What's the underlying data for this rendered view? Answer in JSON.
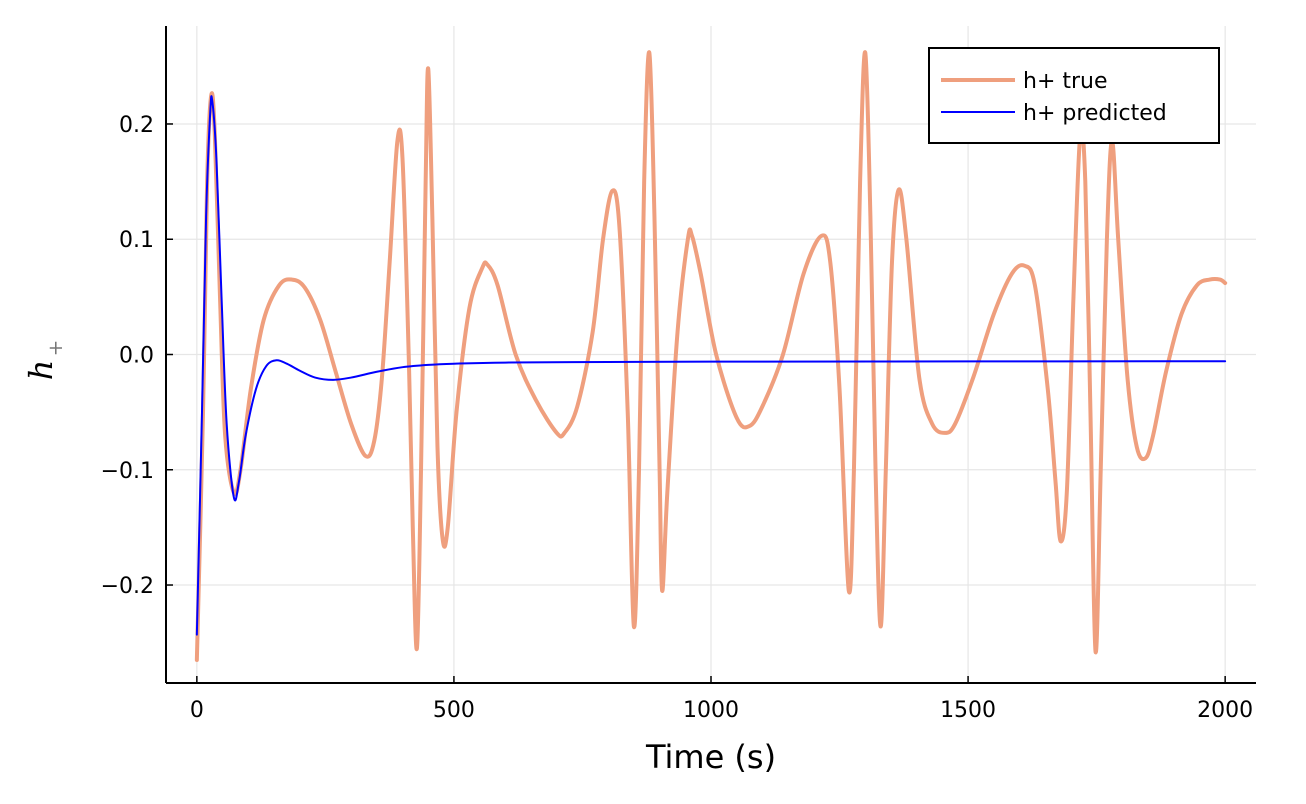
{
  "chart_data": {
    "type": "line",
    "xlabel": "Time (s)",
    "ylabel": {
      "main": "h",
      "sub": "+"
    },
    "xlim": [
      -60,
      2060
    ],
    "ylim": [
      -0.285,
      0.285
    ],
    "xticks": [
      0,
      500,
      1000,
      1500,
      2000
    ],
    "xtick_labels": [
      "0",
      "500",
      "1000",
      "1500",
      "2000"
    ],
    "yticks": [
      -0.2,
      -0.1,
      0.0,
      0.1,
      0.2
    ],
    "ytick_labels": [
      "−0.2",
      "−0.1",
      "0.0",
      "0.1",
      "0.2"
    ],
    "grid": true,
    "legend_position": "top-right",
    "series": [
      {
        "name": "h+ true",
        "color": "#ef9f7e",
        "points": [
          [
            0,
            -0.265
          ],
          [
            12,
            -0.05
          ],
          [
            20,
            0.15
          ],
          [
            28,
            0.225
          ],
          [
            35,
            0.19
          ],
          [
            45,
            0.05
          ],
          [
            55,
            -0.07
          ],
          [
            72,
            -0.12
          ],
          [
            85,
            -0.1
          ],
          [
            105,
            -0.03
          ],
          [
            130,
            0.03
          ],
          [
            160,
            0.06
          ],
          [
            185,
            0.065
          ],
          [
            210,
            0.058
          ],
          [
            240,
            0.03
          ],
          [
            270,
            -0.015
          ],
          [
            300,
            -0.06
          ],
          [
            328,
            -0.088
          ],
          [
            345,
            -0.075
          ],
          [
            360,
            -0.02
          ],
          [
            375,
            0.08
          ],
          [
            390,
            0.185
          ],
          [
            400,
            0.17
          ],
          [
            412,
            0.0
          ],
          [
            420,
            -0.15
          ],
          [
            428,
            -0.255
          ],
          [
            436,
            -0.1
          ],
          [
            445,
            0.15
          ],
          [
            450,
            0.248
          ],
          [
            458,
            0.12
          ],
          [
            468,
            -0.08
          ],
          [
            478,
            -0.16
          ],
          [
            488,
            -0.15
          ],
          [
            505,
            -0.05
          ],
          [
            530,
            0.04
          ],
          [
            555,
            0.075
          ],
          [
            565,
            0.078
          ],
          [
            585,
            0.06
          ],
          [
            620,
            0.0
          ],
          [
            660,
            -0.04
          ],
          [
            700,
            -0.068
          ],
          [
            715,
            -0.068
          ],
          [
            740,
            -0.045
          ],
          [
            770,
            0.02
          ],
          [
            790,
            0.1
          ],
          [
            808,
            0.142
          ],
          [
            822,
            0.11
          ],
          [
            838,
            -0.05
          ],
          [
            850,
            -0.236
          ],
          [
            860,
            -0.1
          ],
          [
            870,
            0.15
          ],
          [
            880,
            0.262
          ],
          [
            890,
            0.12
          ],
          [
            900,
            -0.1
          ],
          [
            905,
            -0.205
          ],
          [
            915,
            -0.12
          ],
          [
            935,
            0.02
          ],
          [
            955,
            0.1
          ],
          [
            963,
            0.103
          ],
          [
            980,
            0.07
          ],
          [
            1010,
            0.0
          ],
          [
            1050,
            -0.055
          ],
          [
            1075,
            -0.062
          ],
          [
            1100,
            -0.045
          ],
          [
            1140,
            0.0
          ],
          [
            1180,
            0.07
          ],
          [
            1215,
            0.103
          ],
          [
            1232,
            0.08
          ],
          [
            1250,
            -0.03
          ],
          [
            1268,
            -0.205
          ],
          [
            1278,
            -0.1
          ],
          [
            1290,
            0.15
          ],
          [
            1300,
            0.262
          ],
          [
            1310,
            0.12
          ],
          [
            1320,
            -0.1
          ],
          [
            1330,
            -0.236
          ],
          [
            1340,
            -0.1
          ],
          [
            1352,
            0.08
          ],
          [
            1365,
            0.143
          ],
          [
            1380,
            0.1
          ],
          [
            1405,
            -0.02
          ],
          [
            1430,
            -0.06
          ],
          [
            1455,
            -0.068
          ],
          [
            1475,
            -0.06
          ],
          [
            1510,
            -0.02
          ],
          [
            1550,
            0.035
          ],
          [
            1585,
            0.07
          ],
          [
            1610,
            0.077
          ],
          [
            1630,
            0.06
          ],
          [
            1655,
            -0.03
          ],
          [
            1670,
            -0.11
          ],
          [
            1680,
            -0.162
          ],
          [
            1692,
            -0.12
          ],
          [
            1705,
            0.05
          ],
          [
            1718,
            0.19
          ],
          [
            1728,
            0.15
          ],
          [
            1738,
            -0.05
          ],
          [
            1748,
            -0.258
          ],
          [
            1758,
            -0.1
          ],
          [
            1770,
            0.1
          ],
          [
            1780,
            0.185
          ],
          [
            1792,
            0.1
          ],
          [
            1810,
            -0.02
          ],
          [
            1828,
            -0.08
          ],
          [
            1845,
            -0.09
          ],
          [
            1860,
            -0.07
          ],
          [
            1885,
            -0.015
          ],
          [
            1915,
            0.035
          ],
          [
            1945,
            0.06
          ],
          [
            1970,
            0.065
          ],
          [
            1990,
            0.065
          ],
          [
            2000,
            0.062
          ]
        ]
      },
      {
        "name": "h+ predicted",
        "color": "#0000ff",
        "points": [
          [
            0,
            -0.243
          ],
          [
            10,
            -0.05
          ],
          [
            18,
            0.12
          ],
          [
            26,
            0.21
          ],
          [
            30,
            0.22
          ],
          [
            38,
            0.17
          ],
          [
            48,
            0.05
          ],
          [
            58,
            -0.06
          ],
          [
            72,
            -0.124
          ],
          [
            82,
            -0.11
          ],
          [
            95,
            -0.07
          ],
          [
            115,
            -0.03
          ],
          [
            135,
            -0.01
          ],
          [
            155,
            -0.005
          ],
          [
            175,
            -0.008
          ],
          [
            200,
            -0.014
          ],
          [
            230,
            -0.02
          ],
          [
            265,
            -0.022
          ],
          [
            300,
            -0.02
          ],
          [
            350,
            -0.015
          ],
          [
            400,
            -0.011
          ],
          [
            450,
            -0.009
          ],
          [
            500,
            -0.008
          ],
          [
            600,
            -0.007
          ],
          [
            800,
            -0.0065
          ],
          [
            1000,
            -0.0062
          ],
          [
            1500,
            -0.006
          ],
          [
            2000,
            -0.0058
          ]
        ]
      }
    ]
  }
}
